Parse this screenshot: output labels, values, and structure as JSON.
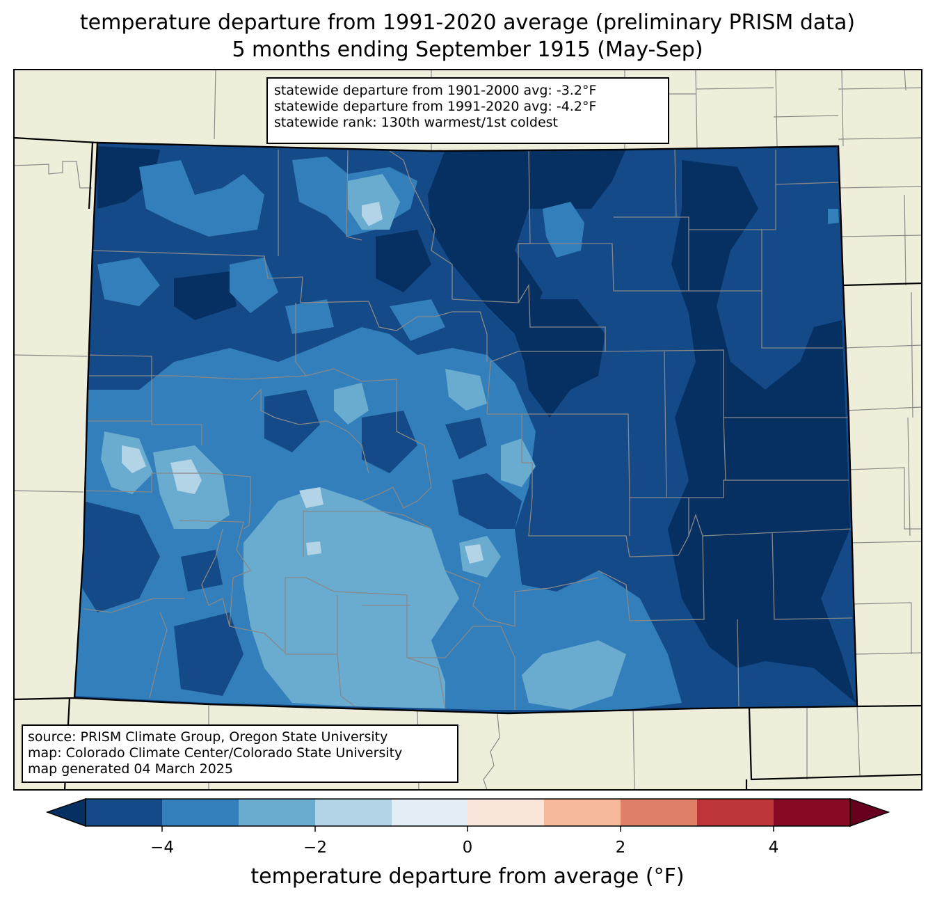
{
  "title": {
    "line1": "temperature departure from 1991-2020 average (preliminary PRISM data)",
    "line2": "5 months ending September 1915 (May-Sep)"
  },
  "stats": {
    "line1": "statewide departure from 1901-2000 avg: -3.2°F",
    "line2": "statewide departure from 1991-2020 avg: -4.2°F",
    "line3": "statewide rank: 130th warmest/1st coldest"
  },
  "credits": {
    "line1": "source: PRISM Climate Group, Oregon State University",
    "line2": "map: Colorado Climate Center/Colorado State University",
    "line3": "map generated 04 March 2025"
  },
  "colorbar": {
    "label": "temperature departure from average (°F)",
    "ticks": [
      "−4",
      "−2",
      "0",
      "2",
      "4"
    ],
    "bins": [
      {
        "range": "<-5",
        "color": "#053061"
      },
      {
        "range": "-5 to -4",
        "color": "#134a87"
      },
      {
        "range": "-4 to -3",
        "color": "#327fbb"
      },
      {
        "range": "-3 to -2",
        "color": "#6aacd0"
      },
      {
        "range": "-2 to -1",
        "color": "#b2d4e6"
      },
      {
        "range": "-1 to 0",
        "color": "#e3eef4"
      },
      {
        "range": "0 to 1",
        "color": "#f9e5da"
      },
      {
        "range": "1 to 2",
        "color": "#f7b99b"
      },
      {
        "range": "2 to 3",
        "color": "#e07f67"
      },
      {
        "range": "3 to 4",
        "color": "#bf363a"
      },
      {
        "range": "4 to 5",
        "color": "#870a24"
      },
      {
        "range": ">5",
        "color": "#67001f"
      }
    ]
  },
  "colors": {
    "land": "#efeedb",
    "county_lines": "#888888",
    "state_lines": "#000000"
  }
}
